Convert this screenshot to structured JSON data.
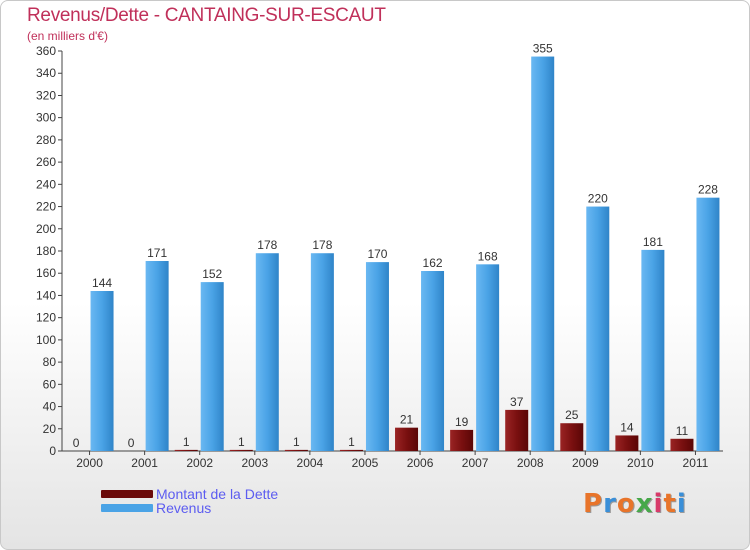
{
  "header": {
    "title": "Revenus/Dette - CANTAING-SUR-ESCAUT",
    "subtitle": "(en milliers d'€)"
  },
  "legend": {
    "items": [
      {
        "label": "Montant de la Dette",
        "color": "#6b0a0a"
      },
      {
        "label": "Revenus",
        "color": "#4aa3e6"
      }
    ]
  },
  "logo": {
    "text": "Proxiti"
  },
  "colors": {
    "title": "#c0305a",
    "debt": "#6b0a0a",
    "revenue": "#4aa3e6",
    "legend_text": "#5c5cf0"
  },
  "chart_data": {
    "type": "bar",
    "title": "Revenus/Dette - CANTAING-SUR-ESCAUT",
    "subtitle": "(en milliers d'€)",
    "categories": [
      "2000",
      "2001",
      "2002",
      "2003",
      "2004",
      "2005",
      "2006",
      "2007",
      "2008",
      "2009",
      "2010",
      "2011"
    ],
    "series": [
      {
        "name": "Montant de la Dette",
        "values": [
          0,
          0,
          1,
          1,
          1,
          1,
          21,
          19,
          37,
          25,
          14,
          11
        ]
      },
      {
        "name": "Revenus",
        "values": [
          144,
          171,
          152,
          178,
          178,
          170,
          162,
          168,
          355,
          220,
          181,
          228
        ]
      }
    ],
    "ylim": [
      0,
      360
    ],
    "yticks": [
      0,
      20,
      40,
      60,
      80,
      100,
      120,
      140,
      160,
      180,
      200,
      220,
      240,
      260,
      280,
      300,
      320,
      340,
      360
    ],
    "grid": false,
    "legend_position": "bottom-left"
  }
}
